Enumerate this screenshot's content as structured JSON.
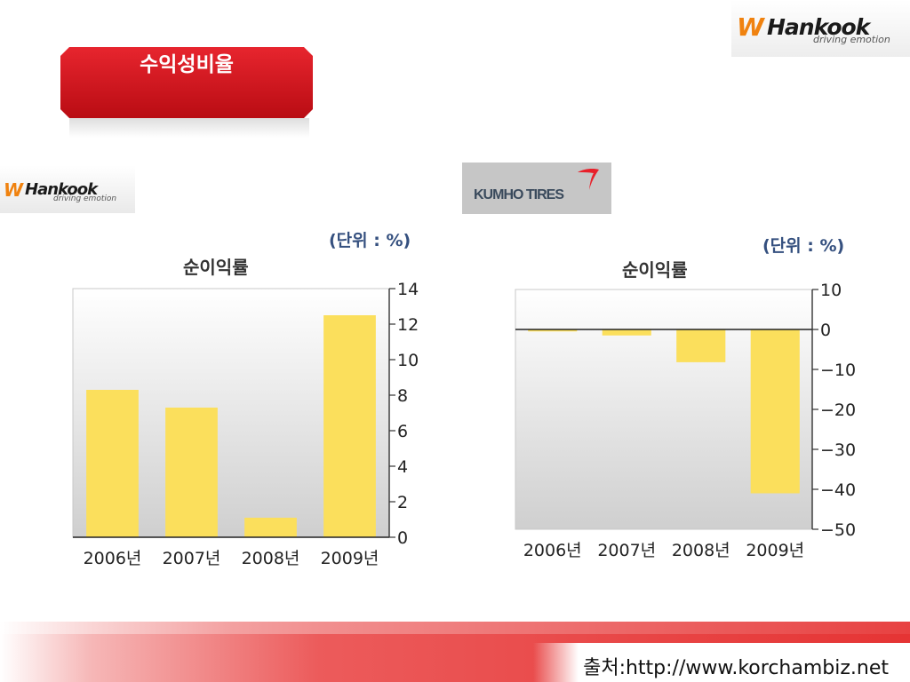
{
  "header": {
    "banner_title": "수익성비율",
    "logo_brand": "Hankook",
    "logo_tagline": "driving emotion",
    "logo_mark": "W"
  },
  "companies": {
    "left_brand": "Hankook",
    "left_tagline": "driving emotion",
    "right_brand": "KUMHO TIRES"
  },
  "footer": {
    "source": "출처:http://www.korchambiz.net"
  },
  "colors": {
    "bar": "#fbdf5c",
    "banner": "#d9161e",
    "unit_text": "#35507f"
  },
  "chart_data": [
    {
      "type": "bar",
      "company": "Hankook",
      "title": "순이익률",
      "unit_label": "(단위 : %)",
      "categories": [
        "2006년",
        "2007년",
        "2008년",
        "2009년"
      ],
      "values": [
        8.3,
        7.3,
        1.1,
        12.5
      ],
      "ylim": [
        0,
        14
      ],
      "yticks": [
        0,
        2,
        4,
        6,
        8,
        10,
        12,
        14
      ],
      "y_axis_side": "right",
      "grid": false,
      "legend": "none"
    },
    {
      "type": "bar",
      "company": "KUMHO TIRES",
      "title": "순이익률",
      "unit_label": "(단위 : %)",
      "categories": [
        "2006년",
        "2007년",
        "2008년",
        "2009년"
      ],
      "values": [
        -0.5,
        -1.5,
        -8.2,
        -41
      ],
      "ylim": [
        -50,
        10
      ],
      "yticks": [
        10,
        0,
        -10,
        -20,
        -30,
        -40,
        -50
      ],
      "y_axis_side": "right",
      "grid": false,
      "legend": "none"
    }
  ]
}
